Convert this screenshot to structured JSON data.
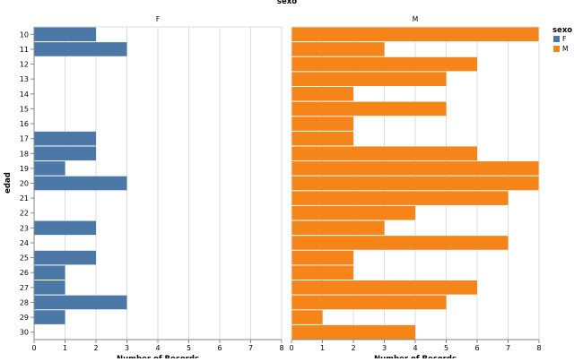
{
  "chart_data": {
    "type": "bar",
    "orientation": "horizontal",
    "facet_title": "sexo",
    "ylabel": "edad",
    "xlabel": "Number of Records",
    "xlim": [
      0,
      8
    ],
    "x_ticks": [
      0,
      1,
      2,
      3,
      4,
      5,
      6,
      7,
      8
    ],
    "categories": [
      "10",
      "11",
      "12",
      "13",
      "14",
      "15",
      "16",
      "17",
      "18",
      "19",
      "20",
      "21",
      "22",
      "23",
      "24",
      "25",
      "26",
      "27",
      "28",
      "29",
      "30"
    ],
    "grid": true,
    "legend": {
      "title": "sexo",
      "placement": "top-right",
      "entries": [
        {
          "label": "F",
          "color": "#4c78a8"
        },
        {
          "label": "M",
          "color": "#f58518"
        }
      ]
    },
    "panels": [
      {
        "label": "F",
        "color": "#4c78a8",
        "values": [
          2,
          3,
          0,
          0,
          0,
          0,
          0,
          2,
          2,
          1,
          3,
          0,
          0,
          2,
          0,
          2,
          1,
          1,
          3,
          1,
          0
        ]
      },
      {
        "label": "M",
        "color": "#f58518",
        "values": [
          8,
          3,
          6,
          5,
          2,
          5,
          2,
          2,
          6,
          8,
          8,
          7,
          4,
          3,
          7,
          2,
          2,
          6,
          5,
          1,
          4
        ]
      }
    ]
  }
}
